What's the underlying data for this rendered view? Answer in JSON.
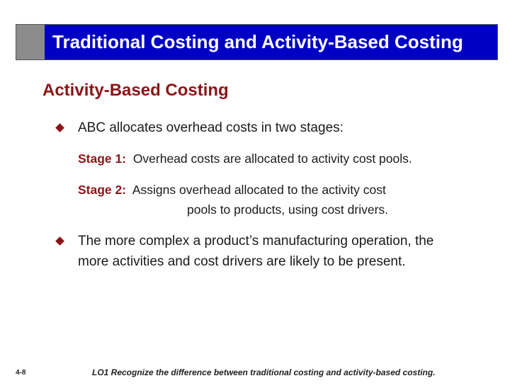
{
  "title": "Traditional Costing and Activity-Based Costing",
  "heading": "Activity-Based Costing",
  "bullets": [
    {
      "text": "ABC allocates overhead costs in two stages:"
    },
    {
      "line1": "The more complex a product’s manufacturing operation, the",
      "line2": "more activities and cost drivers are likely to be present."
    }
  ],
  "stages": [
    {
      "label": "Stage 1:",
      "text": "Overhead costs are allocated to activity cost pools."
    },
    {
      "label": "Stage 2:",
      "text": "Assigns overhead allocated to the activity cost",
      "text2": "pools to products, using cost drivers."
    }
  ],
  "footer": {
    "page": "4-8",
    "objective": "LO1  Recognize the difference between traditional costing and activity-based costing."
  },
  "colors": {
    "title_bar": "#0000c4",
    "accent": "#8b1518",
    "gray_block": "#8c8c8c"
  }
}
